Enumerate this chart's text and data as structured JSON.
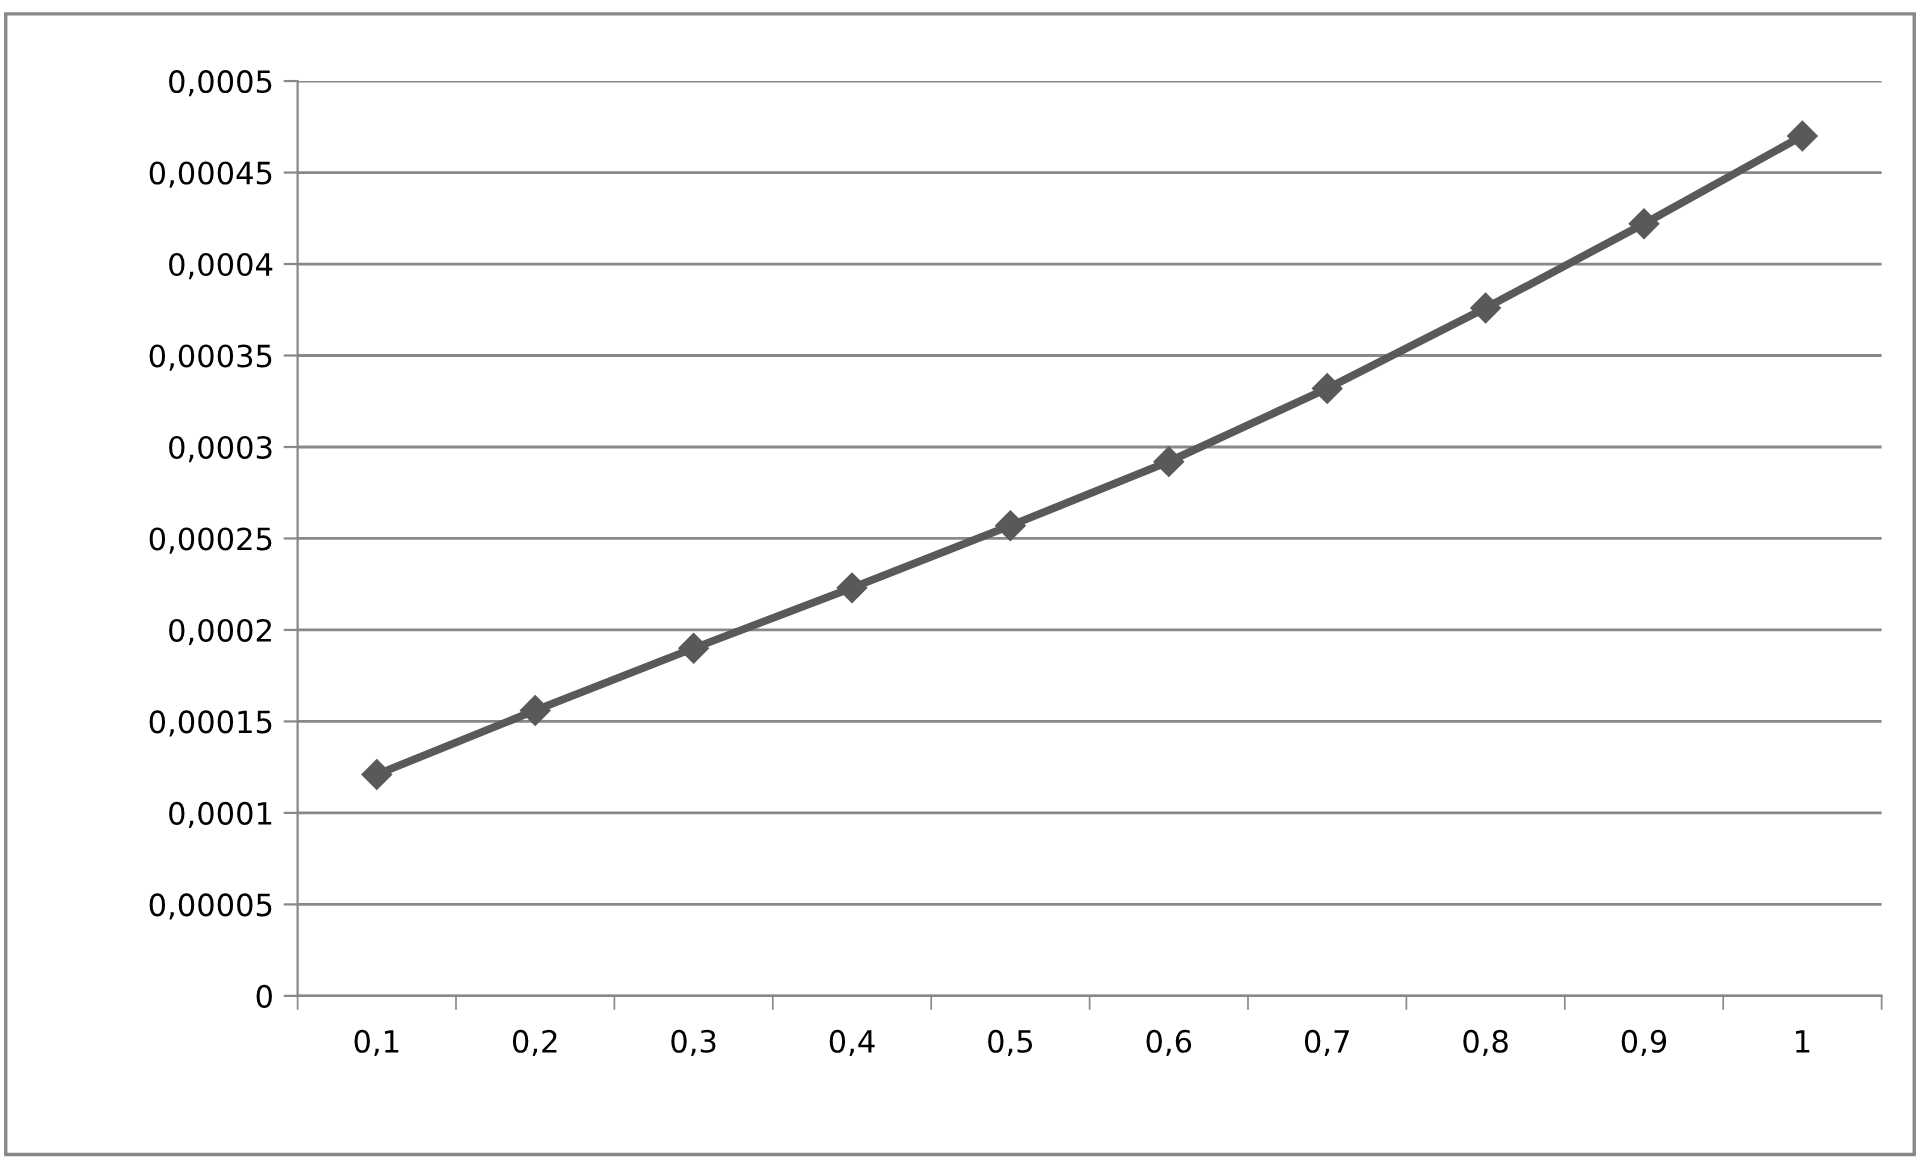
{
  "chart_data": {
    "type": "line",
    "categories": [
      "0,1",
      "0,2",
      "0,3",
      "0,4",
      "0,5",
      "0,6",
      "0,7",
      "0,8",
      "0,9",
      "1"
    ],
    "series": [
      {
        "color": "#595959",
        "values": [
          0.000121,
          0.000156,
          0.00019,
          0.000223,
          0.000257,
          0.000292,
          0.000332,
          0.000376,
          0.000422,
          0.00047
        ]
      }
    ],
    "ylim": [
      0,
      0.0005
    ],
    "yticks": [
      0,
      {
        "value": 5e-05,
        "label": "0,00005"
      },
      {
        "value": 0.0001,
        "label": "0,0001"
      },
      {
        "value": 0.00015,
        "label": "0,00015"
      },
      {
        "value": 0.0002,
        "label": "0,0002"
      },
      {
        "value": 0.00025,
        "label": "0,00025"
      },
      {
        "value": 0.0003,
        "label": "0,0003"
      },
      {
        "value": 0.00035,
        "label": "0,00035"
      },
      {
        "value": 0.0004,
        "label": "0,0004"
      },
      {
        "value": 0.00045,
        "label": "0,00045"
      },
      {
        "value": 0.0005,
        "label": "0,0005"
      }
    ],
    "grid": "y",
    "marker": "diamond",
    "line_style": "solid",
    "legend": false
  }
}
